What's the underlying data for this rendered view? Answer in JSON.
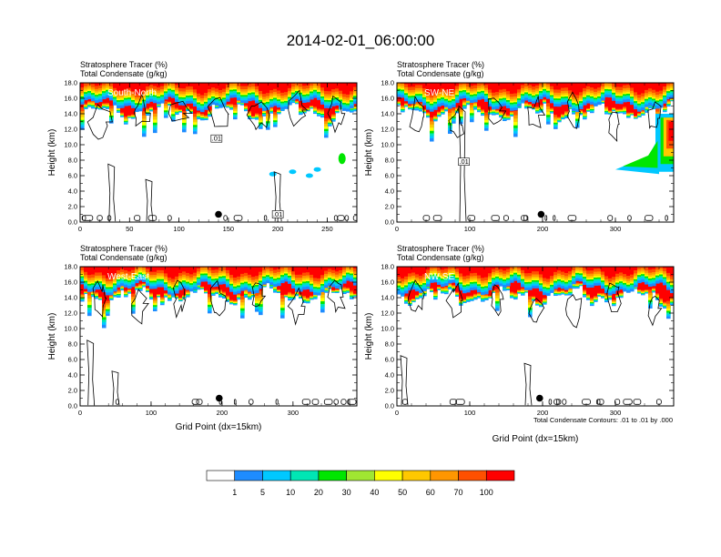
{
  "figure": {
    "title": "2014-02-01_06:00:00",
    "note": "Total Condensate Contours: .01 to .01 by .000"
  },
  "chart_data": [
    {
      "type": "heatmap",
      "header": [
        "Stratosphere Tracer   (%)",
        "Total Condensate   (g/kg)"
      ],
      "region": "South-North",
      "ylabel": "Height (km)",
      "xlabel": "",
      "xlim": [
        0,
        280
      ],
      "xticks": [
        0,
        50,
        100,
        150,
        200,
        250
      ],
      "ylim": [
        0,
        18
      ],
      "yticks": [
        "0.0",
        "2.0",
        "4.0",
        "6.0",
        "8.0",
        "10.0",
        "12.0",
        "14.0",
        "16.0",
        "18.0"
      ],
      "marker": {
        "x": 140,
        "y": 1.0
      },
      "contour_labels": [
        {
          "x": 138,
          "y": 10.8,
          "text": ".01"
        },
        {
          "x": 200,
          "y": 1.0,
          "text": ".01"
        }
      ]
    },
    {
      "type": "heatmap",
      "header": [
        "Stratosphere Tracer   (%)",
        "Total Condensate   (g/kg)"
      ],
      "region": "SW-NE",
      "ylabel": "Height (km)",
      "xlabel": "",
      "xlim": [
        0,
        380
      ],
      "xticks": [
        0,
        100,
        200,
        300
      ],
      "ylim": [
        0,
        18
      ],
      "yticks": [
        "0.0",
        "2.0",
        "4.0",
        "6.0",
        "8.0",
        "10.0",
        "12.0",
        "14.0",
        "16.0",
        "18.0"
      ],
      "marker": {
        "x": 198,
        "y": 1.0
      },
      "contour_labels": [
        {
          "x": 92,
          "y": 7.8,
          "text": ".01"
        }
      ]
    },
    {
      "type": "heatmap",
      "header": [
        "Stratosphere Tracer   (%)",
        "Total Condensate   (g/kg)"
      ],
      "region": "West-East",
      "ylabel": "Height (km)",
      "xlabel": "Grid Point (dx=15km)",
      "xlim": [
        0,
        390
      ],
      "xticks": [
        0,
        100,
        200,
        300
      ],
      "ylim": [
        0,
        18
      ],
      "yticks": [
        "0.0",
        "2.0",
        "4.0",
        "6.0",
        "8.0",
        "10.0",
        "12.0",
        "14.0",
        "16.0",
        "18.0"
      ],
      "marker": {
        "x": 196,
        "y": 1.0
      },
      "contour_labels": []
    },
    {
      "type": "heatmap",
      "header": [
        "Stratosphere Tracer   (%)",
        "Total Condensate   (g/kg)"
      ],
      "region": "NW-SE",
      "ylabel": "Height (km)",
      "xlabel": "Grid Point (dx=15km)",
      "xlim": [
        0,
        380
      ],
      "xticks": [
        0,
        100,
        200,
        300
      ],
      "ylim": [
        0,
        18
      ],
      "yticks": [
        "0.0",
        "2.0",
        "4.0",
        "6.0",
        "8.0",
        "10.0",
        "12.0",
        "14.0",
        "16.0",
        "18.0"
      ],
      "marker": {
        "x": 196,
        "y": 1.0
      },
      "contour_labels": []
    }
  ],
  "colorbar": {
    "levels": [
      "1",
      "5",
      "10",
      "20",
      "30",
      "40",
      "50",
      "60",
      "70",
      "100"
    ],
    "colors": [
      "#ffffff",
      "#1e8cff",
      "#00c8ff",
      "#00e6b4",
      "#00e600",
      "#a0e632",
      "#ffff00",
      "#ffc800",
      "#ff9600",
      "#ff5000",
      "#ff0000"
    ]
  },
  "colors": {
    "contour": "#000000",
    "frame": "#000000",
    "marker": "#000000"
  }
}
